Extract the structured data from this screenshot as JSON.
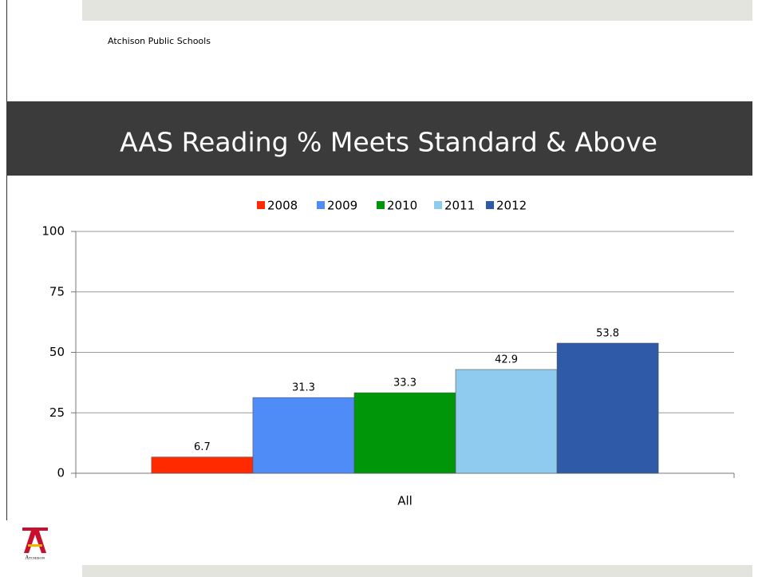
{
  "header": {
    "organization": "Atchison Public Schools",
    "logo_text": "Atchison"
  },
  "chart_data": {
    "type": "bar",
    "title": "AAS Reading % Meets Standard & Above",
    "categories": [
      "All"
    ],
    "series": [
      {
        "name": "2008",
        "color": "#ff2a00",
        "values": [
          6.7
        ]
      },
      {
        "name": "2009",
        "color": "#4f8cf7",
        "values": [
          31.3
        ]
      },
      {
        "name": "2010",
        "color": "#00960a",
        "values": [
          33.3
        ]
      },
      {
        "name": "2011",
        "color": "#8ecbef",
        "values": [
          42.9
        ]
      },
      {
        "name": "2012",
        "color": "#2f5aa8",
        "values": [
          53.8
        ]
      }
    ],
    "ylim": [
      0,
      100
    ],
    "yticks": [
      0,
      25,
      50,
      75,
      100
    ],
    "grid": true,
    "legend": "top",
    "data_labels": true
  }
}
